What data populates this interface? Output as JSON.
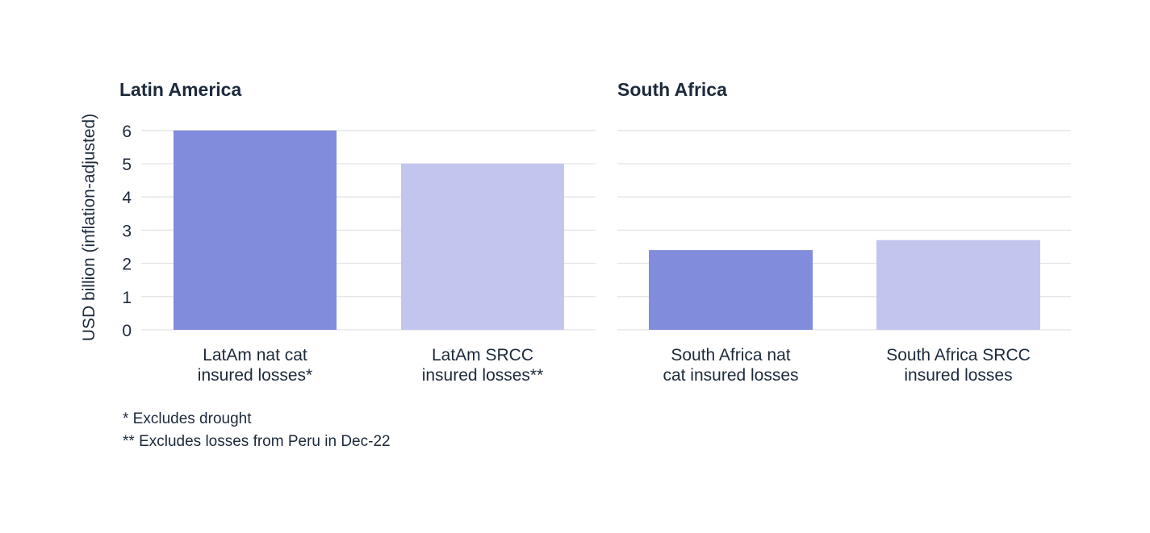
{
  "chart_data": [
    {
      "type": "bar",
      "title": "Latin America",
      "ylabel": "USD billion (inflation-adjusted)",
      "ylim": [
        0,
        6
      ],
      "yticks": [
        0,
        1,
        2,
        3,
        4,
        5,
        6
      ],
      "grid": true,
      "categories": [
        "LatAm nat cat insured losses*",
        "LatAm SRCC insured losses**"
      ],
      "category_lines": [
        [
          "LatAm nat cat",
          "insured losses*"
        ],
        [
          "LatAm SRCC",
          "insured losses**"
        ]
      ],
      "values": [
        6.0,
        5.0
      ],
      "colors": [
        "#818cdc",
        "#c2c6ef"
      ]
    },
    {
      "type": "bar",
      "title": "South Africa",
      "ylim": [
        0,
        6
      ],
      "grid": true,
      "categories": [
        "South Africa nat cat insured losses",
        "South Africa SRCC insured losses"
      ],
      "category_lines": [
        [
          "South Africa nat",
          "cat insured losses"
        ],
        [
          "South Africa SRCC",
          "insured losses"
        ]
      ],
      "values": [
        2.4,
        2.7
      ],
      "colors": [
        "#818cdc",
        "#c2c6ef"
      ]
    }
  ],
  "footnotes": [
    "* Excludes drought",
    "** Excludes losses from Peru in Dec-22"
  ]
}
